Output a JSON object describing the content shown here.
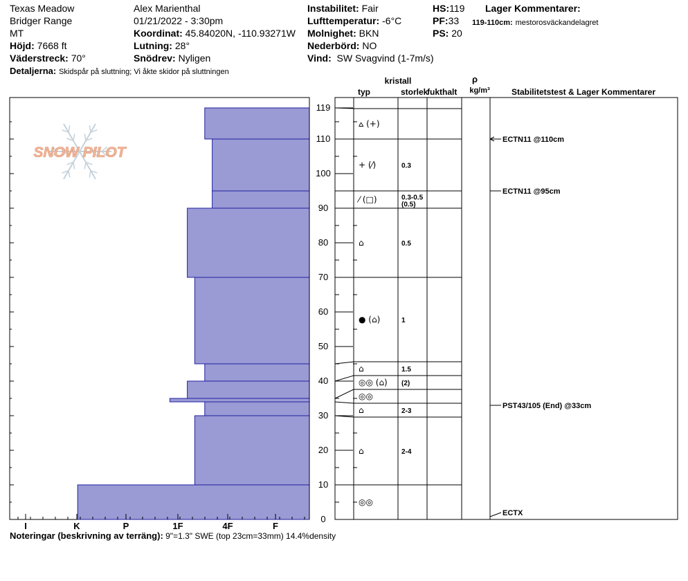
{
  "header": {
    "location": "Texas Meadow",
    "range": "Bridger Range",
    "state": "MT",
    "elevation_label": "Höjd:",
    "elevation": "7668 ft",
    "aspect_label": "Väderstreck:",
    "aspect": "70°",
    "details_label": "Detaljerna:",
    "details": "Skidspår på sluttning;  Vi åkte skidor på sluttningen",
    "observer": "Alex Marienthal",
    "datetime": "01/21/2022 - 3:30pm",
    "coord_label": "Koordinat:",
    "coord": "45.84020N, -110.93271W",
    "slope_label": "Lutning:",
    "slope": "28°",
    "drift_label": "Snödrev:",
    "drift": "Nyligen",
    "stability_label": "Instabilitet:",
    "stability": "Fair",
    "airtemp_label": "Lufttemperatur:",
    "airtemp": "-6°C",
    "sky_label": "Molnighet:",
    "sky": "BKN",
    "precip_label": "Nederbörd:",
    "precip": "NO",
    "wind_label": "Vind:",
    "wind": "SW  Svagvind (1-7m/s)",
    "hs_label": "HS:",
    "hs": "119",
    "pf_label": "PF:",
    "pf": "33",
    "ps_label": "PS:",
    "ps": "20",
    "layer_comments_label": "Lager Kommentarer:",
    "layer_comment_range": "119-110cm:",
    "layer_comment_text": "mestorosväckandelagret"
  },
  "chart_data": {
    "type": "snow_profile",
    "hardness_scale": [
      "I",
      "K",
      "P",
      "1F",
      "4F",
      "F"
    ],
    "depth_axis": {
      "min": 0,
      "max": 119,
      "ticks": [
        0,
        10,
        20,
        30,
        40,
        50,
        60,
        70,
        80,
        90,
        100,
        110,
        119
      ]
    },
    "hardness_layers": [
      {
        "top": 119,
        "bottom": 110,
        "hardness": 4.2
      },
      {
        "top": 110,
        "bottom": 95,
        "hardness": 3.9
      },
      {
        "top": 95,
        "bottom": 90,
        "hardness": 3.9
      },
      {
        "top": 90,
        "bottom": 70,
        "hardness": 4.9
      },
      {
        "top": 70,
        "bottom": 45,
        "hardness": 4.6
      },
      {
        "top": 45,
        "bottom": 40,
        "hardness": 4.2
      },
      {
        "top": 40,
        "bottom": 35,
        "hardness": 4.9
      },
      {
        "top": 35,
        "bottom": 34,
        "hardness": 5.6
      },
      {
        "top": 34,
        "bottom": 30,
        "hardness": 4.2
      },
      {
        "top": 30,
        "bottom": 10,
        "hardness": 4.6
      },
      {
        "top": 10,
        "bottom": 0,
        "hardness": 9.3
      }
    ],
    "column_headers": {
      "crystal": "kristall",
      "type": "typ",
      "size": "storlek",
      "moisture": "fukthalt",
      "density_symbol": "ρ",
      "density_unit": "kg/m³",
      "tests": "Stabilitetstest & Lager Kommentarer"
    },
    "crystal_rows": [
      {
        "top": 119,
        "bottom": 110,
        "type": "⩟ (+)",
        "size": ""
      },
      {
        "top": 110,
        "bottom": 95,
        "type": "+ (⁄)",
        "size": "0.3"
      },
      {
        "top": 95,
        "bottom": 90,
        "type": "⁄ (□)",
        "size": "0.3-0.5",
        "size2": "(0.5)"
      },
      {
        "top": 90,
        "bottom": 70,
        "type": "⌂",
        "size": "0.5"
      },
      {
        "top": 70,
        "bottom": 45,
        "type": "● (⌂)",
        "size": "1"
      },
      {
        "top": 45,
        "bottom": 40,
        "type": "⌂",
        "size": "1.5"
      },
      {
        "top": 40,
        "bottom": 35,
        "type": "◎◎ (⌂)",
        "size": "(2)"
      },
      {
        "top": 35,
        "bottom": 34,
        "type": "◎◎",
        "size": ""
      },
      {
        "top": 34,
        "bottom": 30,
        "type": "⌂",
        "size": "2-3"
      },
      {
        "top": 30,
        "bottom": 10,
        "type": "⌂",
        "size": "2-4"
      },
      {
        "top": 10,
        "bottom": 0,
        "type": "◎◎",
        "size": ""
      }
    ],
    "stability_tests": [
      {
        "depth": 110,
        "label": "ECTN11 @110cm"
      },
      {
        "depth": 95,
        "label": "ECTN11 @95cm"
      },
      {
        "depth": 33,
        "label": "PST43/105 (End) @33cm"
      },
      {
        "depth": 0,
        "label": "ECTX"
      }
    ]
  },
  "logo": {
    "text": "SNOW PILOT"
  },
  "notes": {
    "label": "Noteringar (beskrivning av terräng):",
    "text": "9\"=1.3\" SWE (top 23cm=33mm) 14.4%density"
  },
  "colors": {
    "bar": "#9a9ad5",
    "bar_edge": "#2020a0",
    "logo": "#f0b898"
  }
}
